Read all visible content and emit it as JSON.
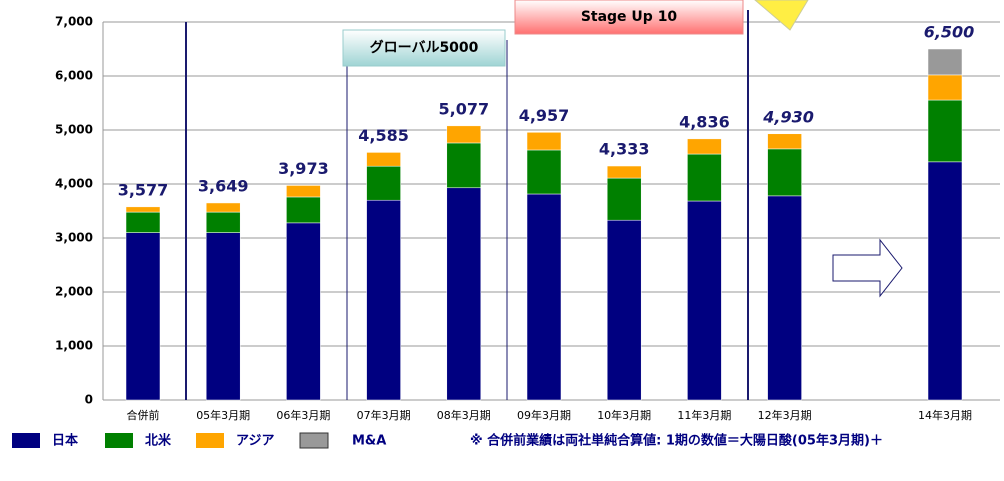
{
  "chart_data": {
    "type": "stacked_bar",
    "categories": [
      "合併前",
      "05年3月期",
      "06年3月期",
      "07年3月期",
      "08年3月期",
      "09年3月期",
      "10年3月期",
      "11年3月期",
      "12年3月期",
      null,
      "14年3月期"
    ],
    "series": [
      {
        "name": "日本",
        "color": "#000080",
        "values": [
          3100,
          3100,
          3280,
          3700,
          3930,
          3815,
          3330,
          3685,
          3780,
          null,
          4410
        ]
      },
      {
        "name": "北米",
        "color": "#008000",
        "values": [
          380,
          380,
          480,
          630,
          830,
          815,
          780,
          870,
          870,
          null,
          1145
        ]
      },
      {
        "name": "アジア",
        "color": "#ffa500",
        "values": [
          97,
          169,
          213,
          255,
          317,
          327,
          223,
          281,
          280,
          null,
          465
        ]
      },
      {
        "name": "M&A",
        "color": "#999999",
        "values": [
          null,
          null,
          null,
          null,
          null,
          null,
          null,
          null,
          null,
          null,
          480
        ]
      }
    ],
    "totals": [
      3577,
      3649,
      3973,
      4585,
      5077,
      4957,
      4333,
      4836,
      4930,
      null,
      6500
    ],
    "total_labels": [
      "3,577",
      "3,649",
      "3,973",
      "4,585",
      "5,077",
      "4,957",
      "4,333",
      "4,836",
      "4,930",
      null,
      "6,500"
    ],
    "ylim": [
      0,
      7000
    ],
    "yticks": [
      0,
      {
        "value": 1000,
        "label": "1,000"
      },
      {
        "value": 2000,
        "label": "2,000"
      },
      {
        "value": 3000,
        "label": "3,000"
      },
      {
        "value": 4000,
        "label": "4,000"
      },
      {
        "value": 5000,
        "label": "5,000"
      },
      {
        "value": 6000,
        "label": "6,000"
      },
      {
        "value": 7000,
        "label": "7,000"
      }
    ],
    "grid": true,
    "annotations": [
      "グローバル5000",
      "Stage Up 10"
    ],
    "footnote": "※ 合併前業績は両社単純合算値: 1期の数値＝大陽日酸(05年3月期)＋"
  }
}
